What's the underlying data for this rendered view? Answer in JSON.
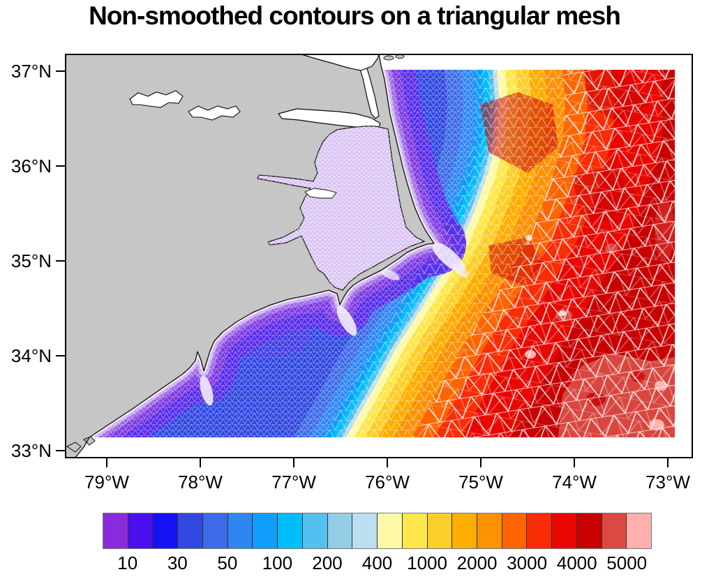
{
  "title": "Non-smoothed contours on a triangular mesh",
  "map": {
    "y_tick_labels": [
      "37°N",
      "36°N",
      "35°N",
      "34°N",
      "33°N"
    ],
    "x_tick_labels": [
      "79°W",
      "78°W",
      "77°W",
      "76°W",
      "75°W",
      "74°W",
      "73°W"
    ],
    "land_color": "#C6C6C6",
    "coastline_color": "#0a0a0a",
    "mesh_line_color": "#ffffff",
    "sound_fill_color": "#D7C0F4"
  },
  "colorbar": {
    "labels": [
      "10",
      "30",
      "50",
      "100",
      "200",
      "400",
      "1000",
      "2000",
      "3000",
      "4000",
      "5000"
    ],
    "colors": [
      "#8A2BDB",
      "#4A10EE",
      "#1412F2",
      "#3048E0",
      "#3B6BE6",
      "#2E86F2",
      "#119EFA",
      "#00BDFB",
      "#52C1F0",
      "#93CDE8",
      "#BBDFF0",
      "#FEF9A7",
      "#FDE74B",
      "#FCCE29",
      "#FEAD01",
      "#FD9104",
      "#FD6503",
      "#F92D06",
      "#E90801",
      "#C90101",
      "#DB4A42",
      "#FFB0AD"
    ],
    "levels": [
      10,
      20,
      30,
      40,
      50,
      75,
      100,
      150,
      200,
      300,
      400,
      700,
      1000,
      1500,
      2000,
      2500,
      3000,
      3500,
      4000,
      4500,
      5000
    ]
  },
  "chart_data": {
    "type": "heatmap",
    "subtype": "filled contour plot on an unstructured triangular mesh",
    "title": "Non-smoothed contours on a triangular mesh",
    "x_tick_labels": [
      "79°W",
      "78°W",
      "77°W",
      "76°W",
      "75°W",
      "74°W",
      "73°W"
    ],
    "y_tick_labels": [
      "37°N",
      "36°N",
      "35°N",
      "34°N",
      "33°N"
    ],
    "x_range": [
      -79.45,
      -72.73
    ],
    "y_range": [
      32.93,
      37.18
    ],
    "grid": false,
    "legend_position": "bottom horizontal label bar",
    "contour_levels": [
      10,
      20,
      30,
      40,
      50,
      75,
      100,
      150,
      200,
      300,
      400,
      700,
      1000,
      1500,
      2000,
      2500,
      3000,
      3500,
      4000,
      4500,
      5000
    ],
    "labeled_levels": [
      10,
      30,
      50,
      100,
      200,
      400,
      1000,
      2000,
      3000,
      4000,
      5000
    ],
    "fill_colors": [
      "#8A2BDB",
      "#4A10EE",
      "#1412F2",
      "#3048E0",
      "#3B6BE6",
      "#2E86F2",
      "#119EFA",
      "#00BDFB",
      "#52C1F0",
      "#93CDE8",
      "#BBDFF0",
      "#FEF9A7",
      "#FDE74B",
      "#FCCE29",
      "#FEAD01",
      "#FD9104",
      "#FD6503",
      "#F92D06",
      "#E90801",
      "#C90101",
      "#DB4A42",
      "#FFB0AD"
    ],
    "description": "Field values increase eastward away from the coast: shallow light-purple values inside the sounds and along beaches, blue values over the shelf, a narrow cyan-to-pale band, then yellow, orange, red and dark red values offshore, with lighter red and pink patches in the southeast. A white triangular mesh overlays the fill, fine near the coast and coarse offshore. Gray land with white sounds and lakes occupies the west."
  }
}
